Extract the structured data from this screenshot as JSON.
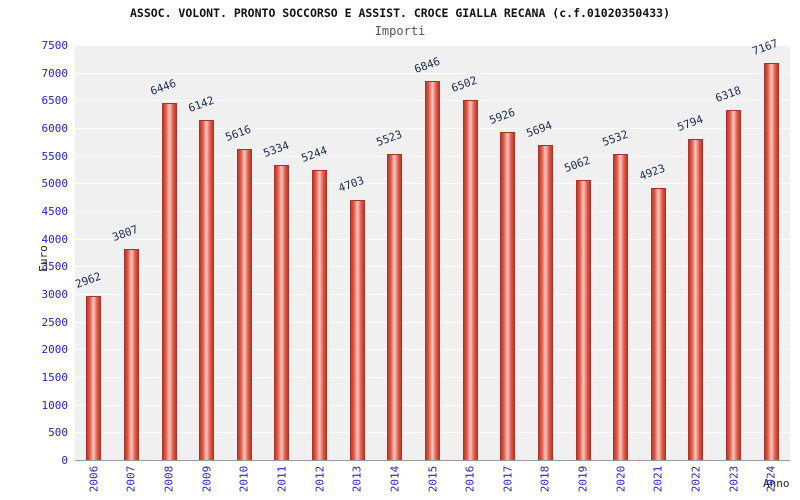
{
  "header": {
    "title": "ASSOC. VOLONT. PRONTO SOCCORSO E ASSIST. CROCE GIALLA RECANA (c.f.01020350433)",
    "subtitle": "Importi"
  },
  "chart_data": {
    "type": "bar",
    "title": "ASSOC. VOLONT. PRONTO SOCCORSO E ASSIST. CROCE GIALLA RECANA (c.f.01020350433)",
    "subtitle": "Importi",
    "xlabel": "Anno",
    "ylabel": "Euro",
    "categories": [
      "2006",
      "2007",
      "2008",
      "2009",
      "2010",
      "2011",
      "2012",
      "2013",
      "2014",
      "2015",
      "2016",
      "2017",
      "2018",
      "2019",
      "2020",
      "2021",
      "2022",
      "2023",
      "2024"
    ],
    "values": [
      2962,
      3807,
      6446,
      6142,
      5616,
      5334,
      5244,
      4703,
      5523,
      6846,
      6502,
      5926,
      5694,
      5062,
      5532,
      4923,
      5794,
      6318,
      7167
    ],
    "ylim": [
      0,
      7500
    ],
    "ytick_step": 500,
    "grid": true,
    "legend": "none",
    "colors": {
      "bar_edge": "#c0392b",
      "bar_highlight": "#f9c9c2",
      "axis_tick_text": "#2222cc",
      "value_label_text": "#1c2a52",
      "plot_background": "#f0f0f0",
      "gridline": "#ffffff"
    }
  }
}
